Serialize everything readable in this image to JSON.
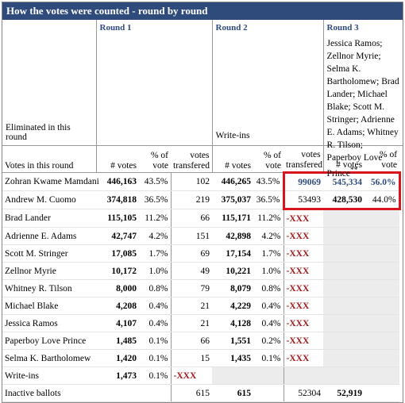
{
  "header": {
    "title": "How the votes were counted - round by round"
  },
  "eliminated_label": "Eliminated in this round",
  "rounds": [
    {
      "name": "Round 1"
    },
    {
      "name": "Round 2",
      "eliminated": "Write-ins"
    },
    {
      "name": "Round 3",
      "eliminated": "Jessica Ramos; Zellnor Myrie; Selma K. Bartholomew; Brad Lander; Michael Blake; Scott M. Stringer; Adrienne E. Adams; Whitney R. Tilson; Paperboy Love Prince",
      "eliminated_note": "**"
    }
  ],
  "columns": [
    "Votes in this round",
    "# votes",
    "% of vote",
    "votes transfered",
    "# votes",
    "% of vote",
    "votes transfered",
    "# votes",
    "% of vote"
  ],
  "rows": [
    {
      "name": "Zohran Kwame Mamdani",
      "cells": [
        "446,163",
        "43.5%",
        "102",
        "446,265",
        "43.5%",
        "99069",
        "545,334",
        "56.0%"
      ]
    },
    {
      "name": "Andrew M. Cuomo",
      "cells": [
        "374,818",
        "36.5%",
        "219",
        "375,037",
        "36.5%",
        "53493",
        "428,530",
        "44.0%"
      ]
    },
    {
      "name": "Brad Lander",
      "cells": [
        "115,105",
        "11.2%",
        "66",
        "115,171",
        "11.2%",
        "-XXX",
        null,
        null
      ]
    },
    {
      "name": "Adrienne E. Adams",
      "cells": [
        "42,747",
        "4.2%",
        "151",
        "42,898",
        "4.2%",
        "-XXX",
        null,
        null
      ]
    },
    {
      "name": "Scott M. Stringer",
      "cells": [
        "17,085",
        "1.7%",
        "69",
        "17,154",
        "1.7%",
        "-XXX",
        null,
        null
      ]
    },
    {
      "name": "Zellnor Myrie",
      "cells": [
        "10,172",
        "1.0%",
        "49",
        "10,221",
        "1.0%",
        "-XXX",
        null,
        null
      ]
    },
    {
      "name": "Whitney R. Tilson",
      "cells": [
        "8,000",
        "0.8%",
        "79",
        "8,079",
        "0.8%",
        "-XXX",
        null,
        null
      ]
    },
    {
      "name": "Michael Blake",
      "cells": [
        "4,208",
        "0.4%",
        "21",
        "4,229",
        "0.4%",
        "-XXX",
        null,
        null
      ]
    },
    {
      "name": "Jessica Ramos",
      "cells": [
        "4,107",
        "0.4%",
        "21",
        "4,128",
        "0.4%",
        "-XXX",
        null,
        null
      ]
    },
    {
      "name": "Paperboy Love Prince",
      "cells": [
        "1,485",
        "0.1%",
        "66",
        "1,551",
        "0.2%",
        "-XXX",
        null,
        null
      ]
    },
    {
      "name": "Selma K. Bartholomew",
      "cells": [
        "1,420",
        "0.1%",
        "15",
        "1,435",
        "0.1%",
        "-XXX",
        null,
        null
      ]
    },
    {
      "name": "Write-ins",
      "cells": [
        "1,473",
        "0.1%",
        "-XXX",
        null,
        null,
        null,
        null,
        null
      ]
    },
    {
      "name": "Inactive ballots",
      "cells": [
        null,
        null,
        "615",
        "615",
        null,
        "52304",
        "52,919",
        null
      ]
    }
  ]
}
